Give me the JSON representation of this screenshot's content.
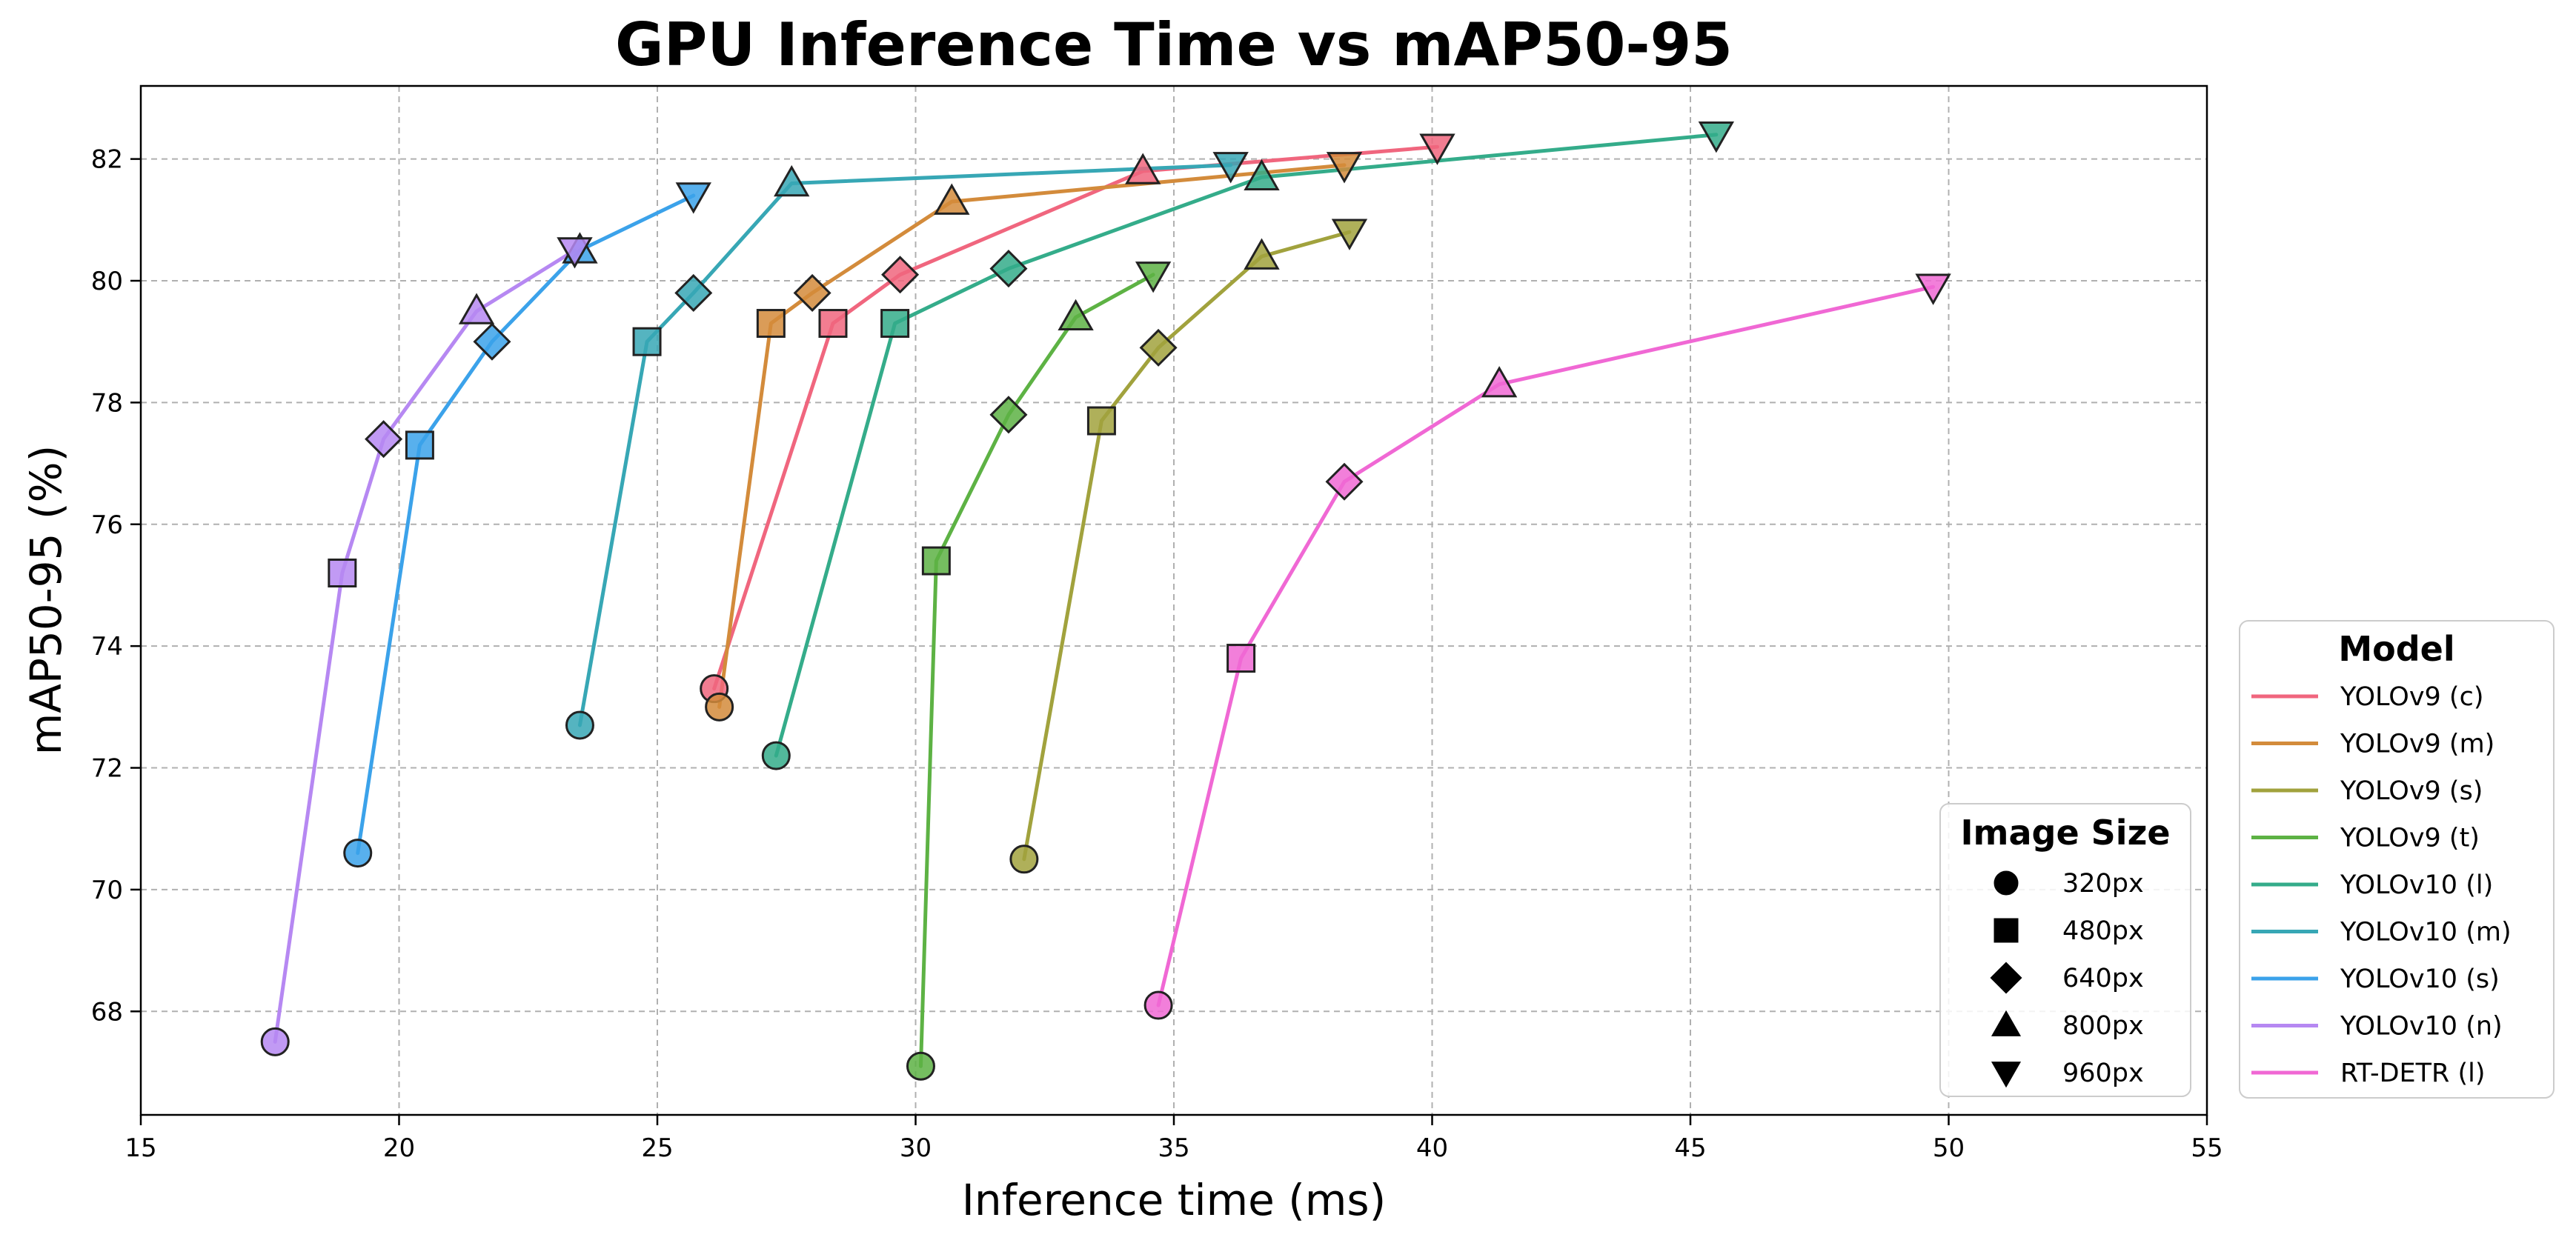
{
  "chart_data": {
    "type": "line",
    "title": "GPU Inference Time vs mAP50-95",
    "xlabel": "Inference time (ms)",
    "ylabel": "mAP50-95 (%)",
    "xlim": [
      15,
      55
    ],
    "ylim": [
      66.3,
      83.2
    ],
    "xticks": [
      15,
      20,
      25,
      30,
      35,
      40,
      45,
      50,
      55
    ],
    "yticks": [
      68,
      70,
      72,
      74,
      76,
      78,
      80,
      82
    ],
    "grid": true,
    "size_legend": {
      "title": "Image Size",
      "placement": "lower-right",
      "entries": [
        {
          "label": "320px",
          "marker": "circle"
        },
        {
          "label": "480px",
          "marker": "square"
        },
        {
          "label": "640px",
          "marker": "diamond"
        },
        {
          "label": "800px",
          "marker": "triangle-up"
        },
        {
          "label": "960px",
          "marker": "triangle-down"
        }
      ]
    },
    "model_legend": {
      "title": "Model",
      "placement": "outside-right"
    },
    "markers": [
      "circle",
      "square",
      "diamond",
      "triangle-up",
      "triangle-down"
    ],
    "series": [
      {
        "name": "YOLOv9 (c)",
        "color": "#f0667e",
        "x": [
          26.1,
          28.4,
          29.7,
          34.4,
          40.1
        ],
        "y": [
          73.3,
          79.3,
          80.1,
          81.8,
          82.2
        ]
      },
      {
        "name": "YOLOv9 (m)",
        "color": "#d38b3b",
        "x": [
          26.2,
          27.2,
          28.0,
          30.7,
          38.3
        ],
        "y": [
          73.0,
          79.3,
          79.8,
          81.3,
          81.9
        ]
      },
      {
        "name": "YOLOv9 (s)",
        "color": "#a1a23d",
        "x": [
          32.1,
          33.6,
          34.7,
          36.7,
          38.4
        ],
        "y": [
          70.5,
          77.7,
          78.9,
          80.4,
          80.8
        ]
      },
      {
        "name": "YOLOv9 (t)",
        "color": "#5db244",
        "x": [
          30.1,
          30.4,
          31.8,
          33.1,
          34.6
        ],
        "y": [
          67.1,
          75.4,
          77.8,
          79.4,
          80.1
        ]
      },
      {
        "name": "YOLOv10 (l)",
        "color": "#34ac8a",
        "x": [
          27.3,
          29.6,
          31.8,
          36.7,
          45.5
        ],
        "y": [
          72.2,
          79.3,
          80.2,
          81.7,
          82.4
        ]
      },
      {
        "name": "YOLOv10 (m)",
        "color": "#37a7b5",
        "x": [
          23.5,
          24.8,
          25.7,
          27.6,
          36.1
        ],
        "y": [
          72.7,
          79.0,
          79.8,
          81.6,
          81.9
        ]
      },
      {
        "name": "YOLOv10 (s)",
        "color": "#3ba2ea",
        "x": [
          19.2,
          20.4,
          21.8,
          23.5,
          25.7
        ],
        "y": [
          70.6,
          77.3,
          79.0,
          80.5,
          81.4
        ]
      },
      {
        "name": "YOLOv10 (n)",
        "color": "#b688f2",
        "x": [
          17.6,
          18.9,
          19.7,
          21.5,
          23.4
        ],
        "y": [
          67.5,
          75.2,
          77.4,
          79.5,
          80.5
        ]
      },
      {
        "name": "RT-DETR (l)",
        "color": "#f068d4",
        "x": [
          34.7,
          36.3,
          38.3,
          41.3,
          49.7
        ],
        "y": [
          68.1,
          73.8,
          76.7,
          78.3,
          79.9
        ]
      }
    ]
  }
}
